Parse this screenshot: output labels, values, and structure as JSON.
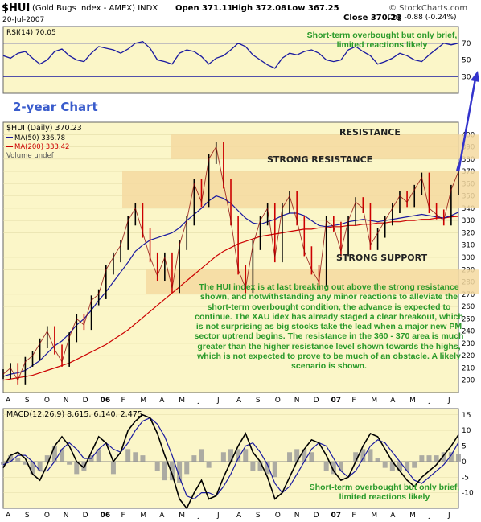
{
  "header": {
    "symbol": "$HUI",
    "name": "(Gold Bugs Index - AMEX)  INDX",
    "date": "20-Jul-2007",
    "open": "Open 371.11",
    "high": "High 372.08",
    "low": "Low 367.25",
    "close": "Close 370.23",
    "change": "Chg -0.88 (-0.24%)",
    "change_direction": "down",
    "source": "© StockCharts.com"
  },
  "annotations": {
    "chart_label": "2-year Chart",
    "rsi_note": "Short-term overbought but only brief, limited reactions likely",
    "macd_note": "Short-term overbought but only brief, limited reactions likely",
    "resistance": "RESISTANCE",
    "strong_resistance": "STRONG RESISTANCE",
    "strong_support": "STRONG SUPPORT",
    "commentary": "The HUI index is at last breaking out above the strong resistance shown, and notwithstanding any minor reactions to alleviate the short-term overbought condition, the advance is expected to continue. The XAU idex has already staged a clear breakout, which is not surprising as big stocks take the lead when a major new PM sector uptrend begins. The resistance in the 360 - 370 area is much greater than the higher resistance level shown towards the highs, which is not expected to prove to be much of an obstacle. A likely scenario is shown."
  },
  "colors": {
    "panel_bg": "#fbf6c8",
    "band": "#f5d9a0",
    "price": "#000000",
    "price_up": "#000000",
    "price_down": "#cc0000",
    "ma50": "#1a1aa0",
    "ma200": "#cc0000",
    "rsi": "#1a1aa0",
    "macd": "#000000",
    "signal": "#1a1aa0",
    "histogram": "#999999",
    "note": "#2a9a2a",
    "arrow": "#3333cc"
  },
  "chart_data": [
    {
      "type": "line",
      "title": "RSI(14) 70.05",
      "legend": [
        "RSI(14) 70.05"
      ],
      "ylim": [
        10,
        90
      ],
      "yticks": [
        70,
        50,
        30
      ],
      "reference_lines": [
        70,
        50,
        30
      ],
      "series": [
        {
          "name": "RSI(14)",
          "values": [
            55,
            52,
            58,
            60,
            52,
            45,
            50,
            60,
            63,
            55,
            50,
            48,
            58,
            66,
            64,
            62,
            58,
            63,
            70,
            72,
            64,
            50,
            48,
            45,
            58,
            62,
            60,
            54,
            45,
            52,
            55,
            62,
            70,
            66,
            56,
            50,
            44,
            40,
            52,
            58,
            56,
            60,
            62,
            58,
            50,
            48,
            50,
            62,
            66,
            60,
            55,
            45,
            48,
            52,
            58,
            55,
            50,
            48,
            56,
            63,
            70,
            68,
            70
          ]
        }
      ]
    },
    {
      "type": "line",
      "title": "$HUI (Daily) 370.23",
      "legend": [
        "$HUI (Daily) 370.23",
        "MA(50) 336.78",
        "MA(200) 333.42",
        "Volume undef"
      ],
      "x_tick_labels": [
        "A",
        "S",
        "O",
        "N",
        "D",
        "06",
        "F",
        "M",
        "A",
        "M",
        "J",
        "J",
        "A",
        "S",
        "O",
        "N",
        "D",
        "07",
        "F",
        "M",
        "A",
        "M",
        "J",
        "J"
      ],
      "ylim": [
        190,
        410
      ],
      "yticks": [
        400,
        390,
        380,
        370,
        360,
        350,
        340,
        330,
        320,
        310,
        300,
        290,
        280,
        270,
        260,
        250,
        240,
        230,
        220,
        210,
        200
      ],
      "bands": [
        {
          "label": "RESISTANCE",
          "from": 380,
          "to": 400
        },
        {
          "label": "STRONG RESISTANCE",
          "from": 340,
          "to": 370
        },
        {
          "label": "STRONG SUPPORT",
          "from": 270,
          "to": 290
        }
      ],
      "series": [
        {
          "name": "$HUI (Daily)",
          "values": [
            205,
            210,
            200,
            215,
            220,
            230,
            240,
            225,
            215,
            235,
            250,
            245,
            265,
            270,
            290,
            300,
            310,
            330,
            340,
            320,
            300,
            285,
            300,
            275,
            310,
            330,
            360,
            345,
            380,
            390,
            360,
            330,
            290,
            275,
            310,
            330,
            340,
            300,
            340,
            350,
            330,
            305,
            290,
            280,
            330,
            325,
            305,
            330,
            345,
            340,
            310,
            320,
            330,
            340,
            350,
            345,
            355,
            365,
            340,
            335,
            330,
            355,
            370
          ]
        },
        {
          "name": "MA(50)",
          "values": [
            203,
            205,
            206,
            208,
            212,
            216,
            222,
            228,
            232,
            238,
            245,
            250,
            257,
            265,
            272,
            280,
            288,
            296,
            305,
            310,
            314,
            316,
            318,
            320,
            324,
            330,
            335,
            340,
            346,
            350,
            348,
            344,
            338,
            332,
            328,
            327,
            329,
            331,
            334,
            336,
            336,
            334,
            330,
            326,
            325,
            326,
            327,
            329,
            330,
            331,
            330,
            329,
            330,
            331,
            332,
            333,
            334,
            335,
            334,
            333,
            332,
            334,
            336.78
          ]
        },
        {
          "name": "MA(200)",
          "values": [
            200,
            201,
            202,
            203,
            204,
            206,
            208,
            210,
            212,
            214,
            217,
            220,
            223,
            226,
            229,
            233,
            237,
            241,
            246,
            251,
            256,
            261,
            266,
            271,
            276,
            281,
            286,
            291,
            296,
            301,
            305,
            308,
            311,
            313,
            315,
            317,
            318,
            319,
            320,
            321,
            322,
            323,
            323,
            324,
            324,
            325,
            325,
            326,
            326,
            327,
            327,
            328,
            328,
            329,
            329,
            330,
            330,
            331,
            331,
            332,
            332,
            333,
            333.42
          ]
        }
      ]
    },
    {
      "type": "line",
      "title": "MACD(12,26,9) 8.615, 6.140, 2.475",
      "legend": [
        "MACD(12,26,9) 8.615, 6.140, 2.475"
      ],
      "x_tick_labels": [
        "A",
        "S",
        "O",
        "N",
        "D",
        "06",
        "F",
        "M",
        "A",
        "M",
        "J",
        "J",
        "A",
        "S",
        "O",
        "N",
        "D",
        "07",
        "F",
        "M",
        "A",
        "M",
        "J",
        "J"
      ],
      "ylim": [
        -15,
        17
      ],
      "yticks": [
        15,
        10,
        5,
        0,
        -5,
        -10
      ],
      "series": [
        {
          "name": "MACD",
          "values": [
            -2,
            2,
            3,
            1,
            -4,
            -6,
            -1,
            5,
            8,
            5,
            0,
            -2,
            3,
            8,
            6,
            0,
            3,
            10,
            13,
            15,
            14,
            9,
            2,
            -4,
            -12,
            -15,
            -10,
            -6,
            -12,
            -11,
            -5,
            0,
            5,
            9,
            3,
            0,
            -5,
            -12,
            -10,
            -5,
            0,
            4,
            7,
            6,
            2,
            -3,
            -6,
            -5,
            0,
            5,
            9,
            8,
            4,
            0,
            -3,
            -6,
            -8,
            -5,
            -3,
            -1,
            2,
            5,
            8.615
          ]
        },
        {
          "name": "Signal",
          "values": [
            -1,
            0,
            2,
            2,
            0,
            -3,
            -3,
            0,
            4,
            6,
            4,
            1,
            1,
            4,
            6,
            4,
            3,
            6,
            10,
            13,
            14,
            12,
            8,
            2,
            -5,
            -11,
            -12,
            -10,
            -10,
            -11,
            -8,
            -4,
            1,
            5,
            6,
            3,
            -1,
            -7,
            -10,
            -8,
            -4,
            0,
            4,
            6,
            5,
            1,
            -3,
            -5,
            -3,
            1,
            5,
            7,
            6,
            3,
            0,
            -3,
            -6,
            -7,
            -5,
            -3,
            -1,
            2,
            6.14
          ]
        }
      ]
    }
  ]
}
